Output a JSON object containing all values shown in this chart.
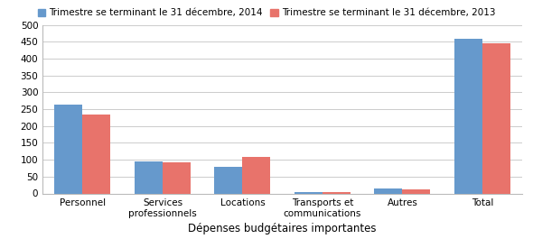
{
  "categories": [
    "Personnel",
    "Services\nprofessionnels",
    "Locations",
    "Transports et\ncommunications",
    "Autres",
    "Total"
  ],
  "values_2014": [
    263,
    95,
    80,
    5,
    15,
    458
  ],
  "values_2013": [
    233,
    92,
    108,
    4,
    12,
    445
  ],
  "color_2014": "#6699CC",
  "color_2013": "#E8736B",
  "legend_2014": "Trimestre se terminant le 31 décembre, 2014",
  "legend_2013": "Trimestre se terminant le 31 décembre, 2013",
  "xlabel": "Dépenses budgétaires importantes",
  "ylim": [
    0,
    500
  ],
  "yticks": [
    0,
    50,
    100,
    150,
    200,
    250,
    300,
    350,
    400,
    450,
    500
  ],
  "bar_width": 0.35,
  "background_color": "#FFFFFF",
  "grid_color": "#CCCCCC",
  "legend_fontsize": 7.5,
  "xlabel_fontsize": 8.5,
  "tick_fontsize": 7.5
}
